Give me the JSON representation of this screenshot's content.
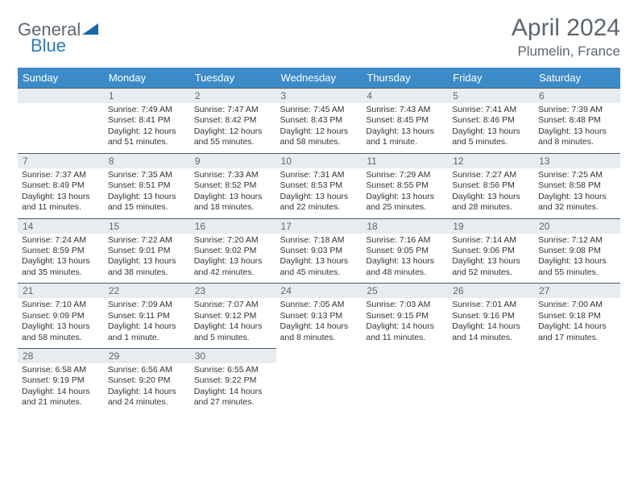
{
  "brand": {
    "part1": "General",
    "part2": "Blue"
  },
  "header": {
    "month_year": "April 2024",
    "location": "Plumelin, France"
  },
  "colors": {
    "header_bg": "#3b8bc8",
    "header_fg": "#ffffff",
    "daynum_bg": "#e9ecef",
    "text_muted": "#5b6770",
    "cell_border": "#4e5a63",
    "body_text": "#333333",
    "page_bg": "#ffffff",
    "logo_accent": "#1766a6"
  },
  "weekdays": [
    "Sunday",
    "Monday",
    "Tuesday",
    "Wednesday",
    "Thursday",
    "Friday",
    "Saturday"
  ],
  "calendar": {
    "start_weekday": 1,
    "days": [
      {
        "n": 1,
        "sunrise": "7:49 AM",
        "sunset": "8:41 PM",
        "daylight": "12 hours and 51 minutes."
      },
      {
        "n": 2,
        "sunrise": "7:47 AM",
        "sunset": "8:42 PM",
        "daylight": "12 hours and 55 minutes."
      },
      {
        "n": 3,
        "sunrise": "7:45 AM",
        "sunset": "8:43 PM",
        "daylight": "12 hours and 58 minutes."
      },
      {
        "n": 4,
        "sunrise": "7:43 AM",
        "sunset": "8:45 PM",
        "daylight": "13 hours and 1 minute."
      },
      {
        "n": 5,
        "sunrise": "7:41 AM",
        "sunset": "8:46 PM",
        "daylight": "13 hours and 5 minutes."
      },
      {
        "n": 6,
        "sunrise": "7:39 AM",
        "sunset": "8:48 PM",
        "daylight": "13 hours and 8 minutes."
      },
      {
        "n": 7,
        "sunrise": "7:37 AM",
        "sunset": "8:49 PM",
        "daylight": "13 hours and 11 minutes."
      },
      {
        "n": 8,
        "sunrise": "7:35 AM",
        "sunset": "8:51 PM",
        "daylight": "13 hours and 15 minutes."
      },
      {
        "n": 9,
        "sunrise": "7:33 AM",
        "sunset": "8:52 PM",
        "daylight": "13 hours and 18 minutes."
      },
      {
        "n": 10,
        "sunrise": "7:31 AM",
        "sunset": "8:53 PM",
        "daylight": "13 hours and 22 minutes."
      },
      {
        "n": 11,
        "sunrise": "7:29 AM",
        "sunset": "8:55 PM",
        "daylight": "13 hours and 25 minutes."
      },
      {
        "n": 12,
        "sunrise": "7:27 AM",
        "sunset": "8:56 PM",
        "daylight": "13 hours and 28 minutes."
      },
      {
        "n": 13,
        "sunrise": "7:25 AM",
        "sunset": "8:58 PM",
        "daylight": "13 hours and 32 minutes."
      },
      {
        "n": 14,
        "sunrise": "7:24 AM",
        "sunset": "8:59 PM",
        "daylight": "13 hours and 35 minutes."
      },
      {
        "n": 15,
        "sunrise": "7:22 AM",
        "sunset": "9:01 PM",
        "daylight": "13 hours and 38 minutes."
      },
      {
        "n": 16,
        "sunrise": "7:20 AM",
        "sunset": "9:02 PM",
        "daylight": "13 hours and 42 minutes."
      },
      {
        "n": 17,
        "sunrise": "7:18 AM",
        "sunset": "9:03 PM",
        "daylight": "13 hours and 45 minutes."
      },
      {
        "n": 18,
        "sunrise": "7:16 AM",
        "sunset": "9:05 PM",
        "daylight": "13 hours and 48 minutes."
      },
      {
        "n": 19,
        "sunrise": "7:14 AM",
        "sunset": "9:06 PM",
        "daylight": "13 hours and 52 minutes."
      },
      {
        "n": 20,
        "sunrise": "7:12 AM",
        "sunset": "9:08 PM",
        "daylight": "13 hours and 55 minutes."
      },
      {
        "n": 21,
        "sunrise": "7:10 AM",
        "sunset": "9:09 PM",
        "daylight": "13 hours and 58 minutes."
      },
      {
        "n": 22,
        "sunrise": "7:09 AM",
        "sunset": "9:11 PM",
        "daylight": "14 hours and 1 minute."
      },
      {
        "n": 23,
        "sunrise": "7:07 AM",
        "sunset": "9:12 PM",
        "daylight": "14 hours and 5 minutes."
      },
      {
        "n": 24,
        "sunrise": "7:05 AM",
        "sunset": "9:13 PM",
        "daylight": "14 hours and 8 minutes."
      },
      {
        "n": 25,
        "sunrise": "7:03 AM",
        "sunset": "9:15 PM",
        "daylight": "14 hours and 11 minutes."
      },
      {
        "n": 26,
        "sunrise": "7:01 AM",
        "sunset": "9:16 PM",
        "daylight": "14 hours and 14 minutes."
      },
      {
        "n": 27,
        "sunrise": "7:00 AM",
        "sunset": "9:18 PM",
        "daylight": "14 hours and 17 minutes."
      },
      {
        "n": 28,
        "sunrise": "6:58 AM",
        "sunset": "9:19 PM",
        "daylight": "14 hours and 21 minutes."
      },
      {
        "n": 29,
        "sunrise": "6:56 AM",
        "sunset": "9:20 PM",
        "daylight": "14 hours and 24 minutes."
      },
      {
        "n": 30,
        "sunrise": "6:55 AM",
        "sunset": "9:22 PM",
        "daylight": "14 hours and 27 minutes."
      }
    ]
  },
  "labels": {
    "sunrise": "Sunrise: ",
    "sunset": "Sunset: ",
    "daylight": "Daylight: "
  }
}
